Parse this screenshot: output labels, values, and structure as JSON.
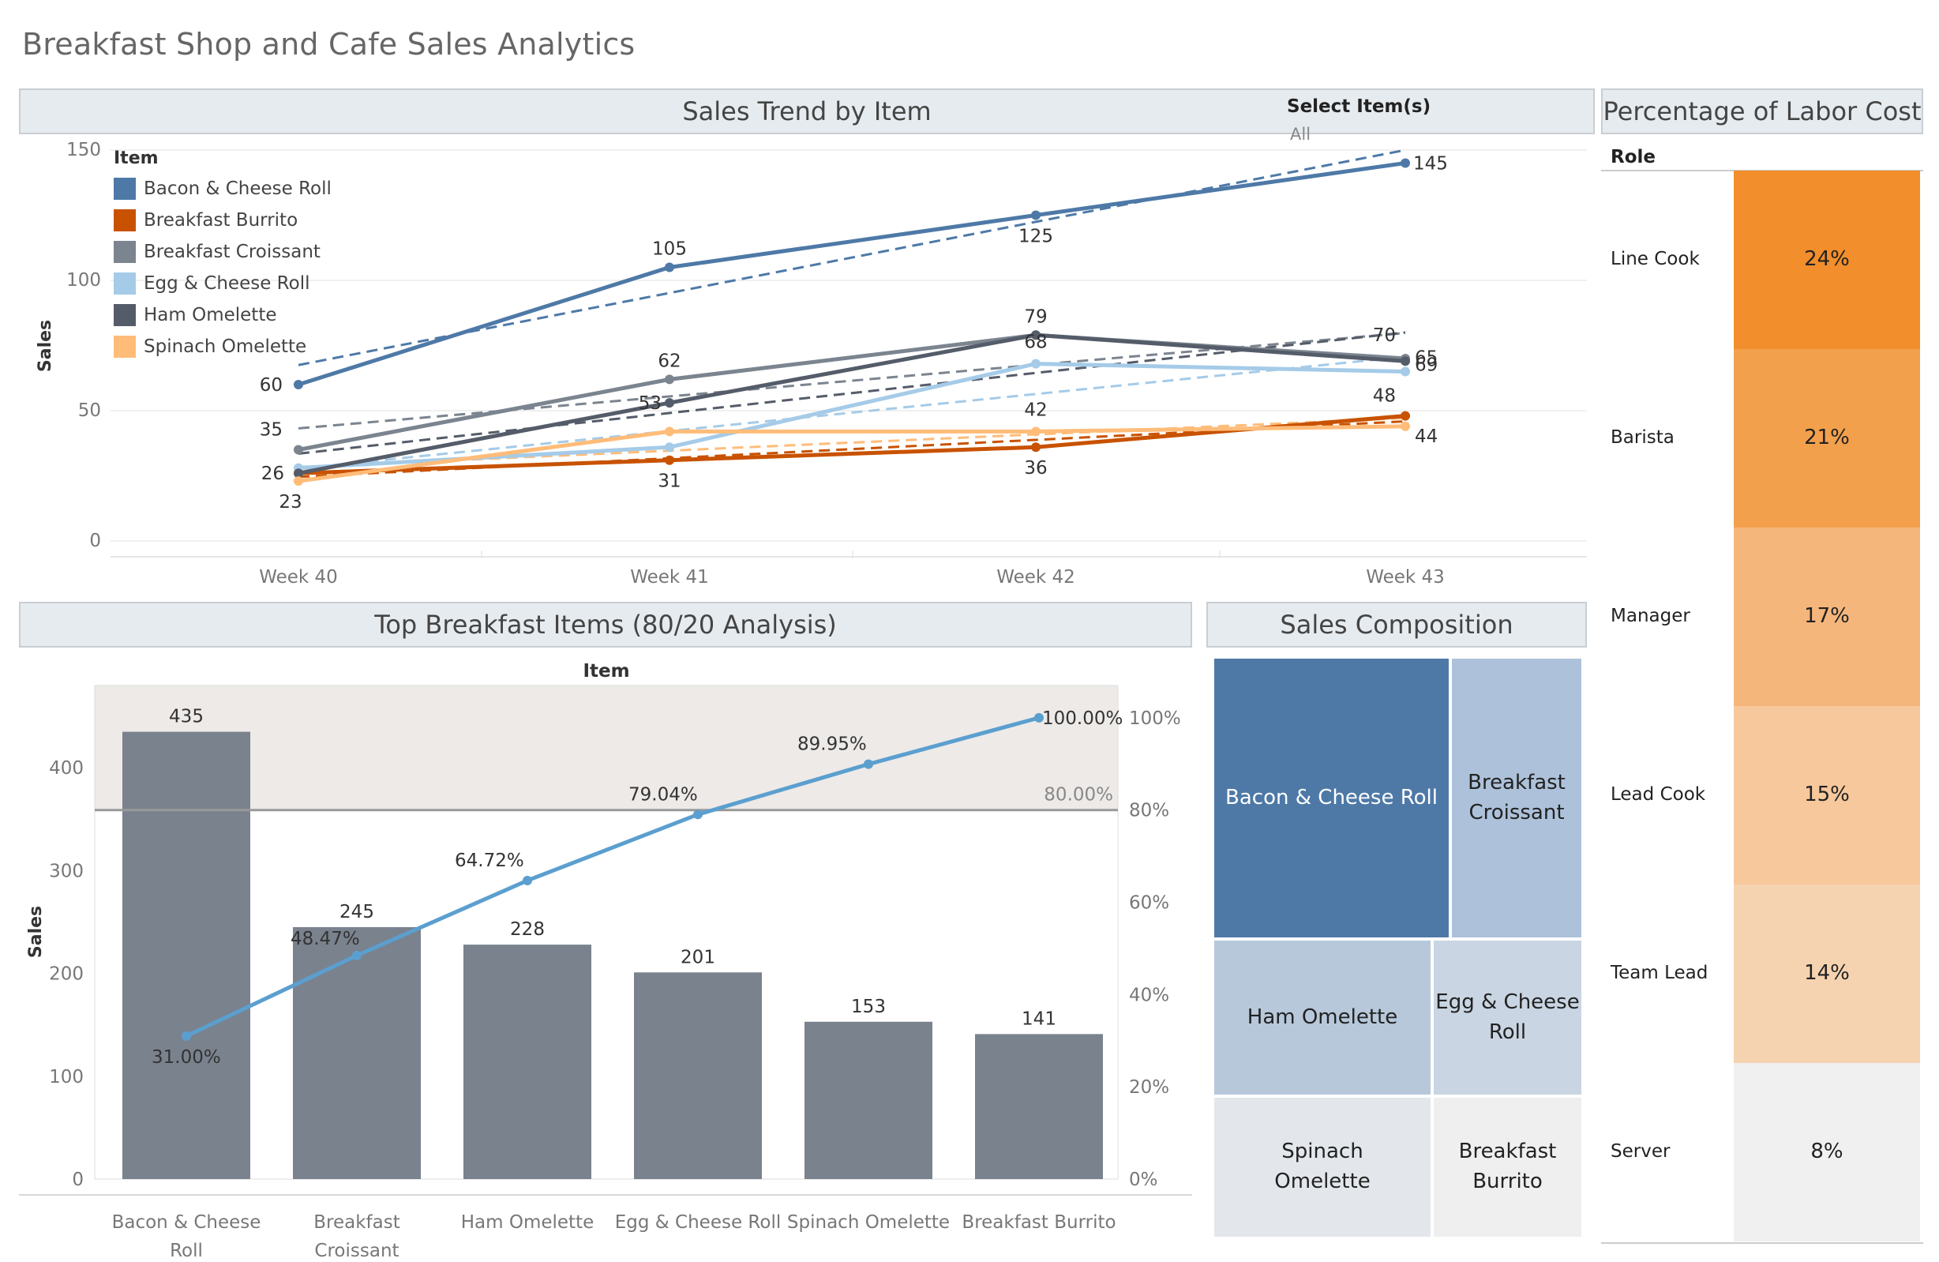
{
  "dashboard": {
    "title": "Breakfast Shop and Cafe Sales Analytics"
  },
  "trend": {
    "title": "Sales Trend by Item",
    "filter": {
      "title": "Select Item(s)",
      "value": "All"
    },
    "legend_title": "Item"
  },
  "pareto": {
    "title": "Top Breakfast Items (80/20 Analysis)",
    "header": "Item"
  },
  "composition": {
    "title": "Sales Composition"
  },
  "labor": {
    "title": "Percentage of Labor Cost",
    "role_header": "Role",
    "rows": [
      {
        "role": "Line Cook",
        "value": "24%",
        "color": "#f28e2b"
      },
      {
        "role": "Barista",
        "value": "21%",
        "color": "#f3a04c"
      },
      {
        "role": "Manager",
        "value": "17%",
        "color": "#f5b67c"
      },
      {
        "role": "Lead Cook",
        "value": "15%",
        "color": "#f7c89c"
      },
      {
        "role": "Team Lead",
        "value": "14%",
        "color": "#f6d3b0"
      },
      {
        "role": "Server",
        "value": "8%",
        "color": "#f0f0f0"
      }
    ]
  },
  "chart_data": [
    {
      "type": "line",
      "title": "Sales Trend by Item",
      "xlabel": "",
      "ylabel": "Sales",
      "x": [
        "Week 40",
        "Week 41",
        "Week 42",
        "Week 43"
      ],
      "ylim": [
        0,
        150
      ],
      "yticks": [
        0,
        50,
        100,
        150
      ],
      "trendlines": "dashed linear trend per series",
      "legend_position": "top-left",
      "series": [
        {
          "name": "Bacon & Cheese Roll",
          "color": "#4e79a7",
          "values": [
            60,
            105,
            125,
            145
          ]
        },
        {
          "name": "Breakfast Burrito",
          "color": "#c85200",
          "values": [
            26,
            31,
            36,
            48
          ]
        },
        {
          "name": "Breakfast Croissant",
          "color": "#7b848f",
          "values": [
            35,
            62,
            79,
            70
          ]
        },
        {
          "name": "Egg & Cheese Roll",
          "color": "#a5cbe8",
          "values": [
            28,
            36,
            68,
            65
          ]
        },
        {
          "name": "Ham Omelette",
          "color": "#555c69",
          "values": [
            26,
            53,
            79,
            69
          ]
        },
        {
          "name": "Spinach Omelette",
          "color": "#ffbc79",
          "values": [
            23,
            42,
            42,
            44
          ]
        }
      ]
    },
    {
      "type": "bar",
      "title": "Top Breakfast Items (80/20 Analysis)",
      "xlabel": "Item",
      "ylabel": "Sales",
      "categories": [
        "Bacon & Cheese Roll",
        "Breakfast Croissant",
        "Ham Omelette",
        "Egg & Cheese Roll",
        "Spinach Omelette",
        "Breakfast Burrito"
      ],
      "values": [
        435,
        245,
        228,
        201,
        153,
        141
      ],
      "ylim": [
        0,
        480
      ],
      "yticks": [
        0,
        100,
        200,
        300,
        400
      ],
      "bar_color": "#7a828e",
      "cumulative_percent": {
        "values": [
          31.0,
          48.47,
          64.72,
          79.04,
          89.95,
          100.0
        ],
        "labels": [
          "31.00%",
          "48.47%",
          "64.72%",
          "79.04%",
          "89.95%",
          "100.00%"
        ],
        "color": "#5b9fcf"
      },
      "y2lim": [
        0,
        107
      ],
      "y2ticks": [
        "0%",
        "20%",
        "40%",
        "60%",
        "80%",
        "100%"
      ],
      "reference_line": {
        "value": 80,
        "label": "80.00%"
      }
    },
    {
      "type": "treemap",
      "title": "Sales Composition",
      "items": [
        {
          "name": "Bacon & Cheese Roll",
          "value": 435,
          "color": "#4e79a7",
          "text_color": "#ffffff"
        },
        {
          "name": "Breakfast Croissant",
          "value": 245,
          "color": "#adc2da",
          "text_color": "#222222"
        },
        {
          "name": "Ham Omelette",
          "value": 228,
          "color": "#b7c8db",
          "text_color": "#222222"
        },
        {
          "name": "Egg & Cheese Roll",
          "value": 201,
          "color": "#c9d5e2",
          "text_color": "#222222"
        },
        {
          "name": "Spinach Omelette",
          "value": 153,
          "color": "#e3e7ec",
          "text_color": "#222222"
        },
        {
          "name": "Breakfast Burrito",
          "value": 141,
          "color": "#efefef",
          "text_color": "#222222"
        }
      ]
    }
  ]
}
